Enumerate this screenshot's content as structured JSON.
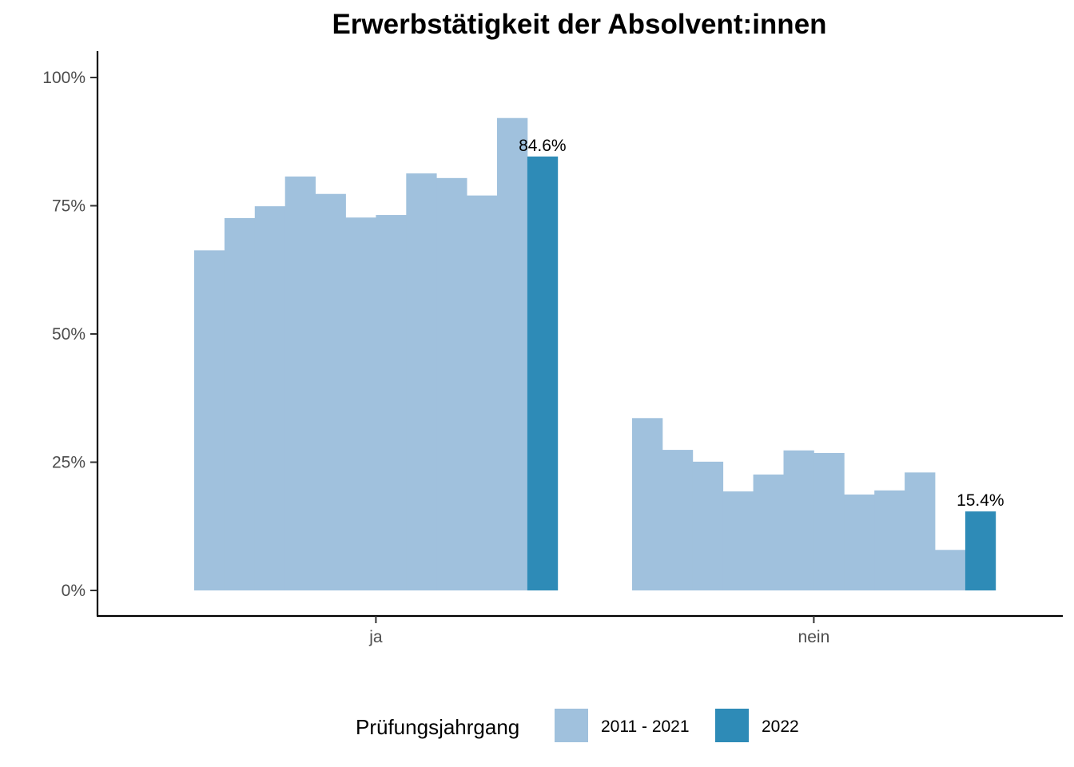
{
  "chart_data": {
    "type": "bar",
    "title": "Erwerbstätigkeit der Absolvent:innen",
    "xlabel": "",
    "ylabel": "",
    "ylim": [
      0,
      1.05
    ],
    "y_ticks": [
      {
        "value": 0,
        "label": "0%"
      },
      {
        "value": 0.25,
        "label": "25%"
      },
      {
        "value": 0.5,
        "label": "50%"
      },
      {
        "value": 0.75,
        "label": "75%"
      },
      {
        "value": 1.0,
        "label": "100%"
      }
    ],
    "categories": [
      "ja",
      "nein"
    ],
    "groups": [
      {
        "category": "ja",
        "values": [
          0.663,
          0.726,
          0.749,
          0.807,
          0.773,
          0.727,
          0.732,
          0.813,
          0.804,
          0.77,
          0.921,
          0.846
        ],
        "series": [
          "2011 - 2021",
          "2011 - 2021",
          "2011 - 2021",
          "2011 - 2021",
          "2011 - 2021",
          "2011 - 2021",
          "2011 - 2021",
          "2011 - 2021",
          "2011 - 2021",
          "2011 - 2021",
          "2011 - 2021",
          "2022"
        ],
        "labels": [
          "",
          "",
          "",
          "",
          "",
          "",
          "",
          "",
          "",
          "",
          "",
          "84.6%"
        ]
      },
      {
        "category": "nein",
        "values": [
          0.336,
          0.274,
          0.251,
          0.193,
          0.226,
          0.273,
          0.268,
          0.187,
          0.195,
          0.23,
          0.079,
          0.154
        ],
        "series": [
          "2011 - 2021",
          "2011 - 2021",
          "2011 - 2021",
          "2011 - 2021",
          "2011 - 2021",
          "2011 - 2021",
          "2011 - 2021",
          "2011 - 2021",
          "2011 - 2021",
          "2011 - 2021",
          "2011 - 2021",
          "2022"
        ],
        "labels": [
          "",
          "",
          "",
          "",
          "",
          "",
          "",
          "",
          "",
          "",
          "",
          "15.4%"
        ]
      }
    ],
    "legend": {
      "title": "Prüfungsjahrgang",
      "position": "bottom",
      "entries": [
        {
          "name": "2011 - 2021",
          "color": "#a0c1dd"
        },
        {
          "name": "2022",
          "color": "#2e8bb7"
        }
      ]
    },
    "grid": false
  }
}
